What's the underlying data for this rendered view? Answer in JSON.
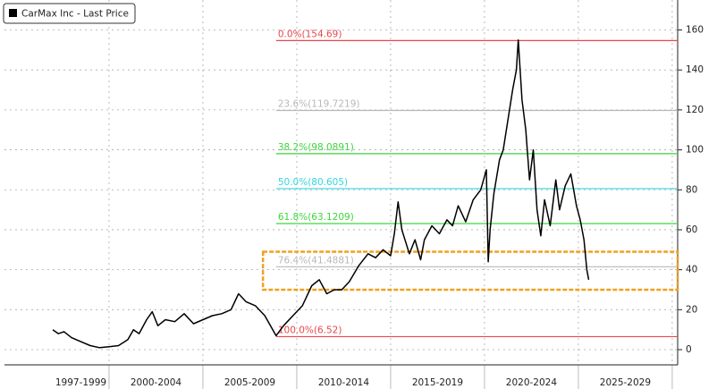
{
  "chart_data": {
    "type": "line",
    "series": [
      {
        "name": "CarMax Inc - Last Price",
        "color": "#000000",
        "x": [
          1997.0,
          1997.3,
          1997.6,
          1998.0,
          1998.5,
          1999.0,
          1999.5,
          2000.0,
          2000.5,
          2001.0,
          2001.3,
          2001.6,
          2002.0,
          2002.3,
          2002.6,
          2003.0,
          2003.5,
          2004.0,
          2004.5,
          2005.0,
          2005.5,
          2006.0,
          2006.5,
          2006.9,
          2007.3,
          2007.8,
          2008.3,
          2008.9,
          2009.3,
          2009.8,
          2010.3,
          2010.8,
          2011.2,
          2011.6,
          2012.0,
          2012.4,
          2012.8,
          2013.3,
          2013.8,
          2014.2,
          2014.6,
          2015.0,
          2015.2,
          2015.4,
          2015.6,
          2016.0,
          2016.3,
          2016.6,
          2016.8,
          2017.2,
          2017.6,
          2018.0,
          2018.3,
          2018.6,
          2019.0,
          2019.4,
          2019.8,
          2020.1,
          2020.2,
          2020.3,
          2020.5,
          2020.8,
          2021.0,
          2021.3,
          2021.5,
          2021.7,
          2021.8,
          2022.0,
          2022.2,
          2022.4,
          2022.6,
          2022.8,
          2023.0,
          2023.2,
          2023.5,
          2023.8,
          2024.0,
          2024.3,
          2024.6,
          2024.9,
          2025.1,
          2025.3,
          2025.45,
          2025.55
        ],
        "values": [
          10,
          8,
          9,
          6,
          4,
          2,
          1,
          1.5,
          2,
          5,
          10,
          8,
          15,
          19,
          12,
          15,
          14,
          18,
          13,
          15,
          17,
          18,
          20,
          28,
          24,
          22,
          17,
          7,
          12,
          17,
          22,
          32,
          35,
          28,
          30,
          30,
          34,
          42,
          48,
          46,
          50,
          47,
          58,
          74,
          60,
          48,
          55,
          45,
          55,
          62,
          58,
          65,
          62,
          72,
          64,
          75,
          80,
          90,
          44,
          60,
          78,
          95,
          100,
          118,
          130,
          140,
          155,
          125,
          110,
          85,
          100,
          70,
          57,
          75,
          62,
          85,
          70,
          82,
          88,
          72,
          65,
          55,
          40,
          35
        ]
      }
    ],
    "fib_levels": [
      {
        "label": "0.0%(154.69)",
        "value": 154.69,
        "color": "#e8474d"
      },
      {
        "label": "23.6%(119.7219)",
        "value": 119.7219,
        "color": "#b8b8b8"
      },
      {
        "label": "38.2%(98.0891)",
        "value": 98.0891,
        "color": "#3dd63d"
      },
      {
        "label": "50.0%(80.605)",
        "value": 80.605,
        "color": "#33d6e0"
      },
      {
        "label": "61.8%(63.1209)",
        "value": 63.1209,
        "color": "#3dd63d"
      },
      {
        "label": "76.4%(41.4881)",
        "value": 41.4881,
        "color": "#b8b8b8"
      },
      {
        "label": "100.0%(6.52)",
        "value": 6.52,
        "color": "#e8474d"
      }
    ],
    "fib_start": 2008.9,
    "highlight": {
      "x0": 2008.2,
      "y0": 30,
      "y1": 49,
      "color": "#f0a020"
    },
    "periods": [
      {
        "label": "1997-1999",
        "start": 1997,
        "end": 2000
      },
      {
        "label": "2000-2004",
        "start": 2000,
        "end": 2005
      },
      {
        "label": "2005-2009",
        "start": 2005,
        "end": 2010
      },
      {
        "label": "2010-2014",
        "start": 2010,
        "end": 2015
      },
      {
        "label": "2015-2019",
        "start": 2015,
        "end": 2020
      },
      {
        "label": "2020-2024",
        "start": 2020,
        "end": 2025
      },
      {
        "label": "2025-2029",
        "start": 2025,
        "end": 2030
      }
    ],
    "xlim": [
      1994.43,
      2030.29
    ],
    "ylim": [
      -7.6,
      175
    ],
    "yticks": [
      0,
      20,
      40,
      60,
      80,
      100,
      120,
      140,
      160
    ],
    "grid": true,
    "legend": "top-left"
  }
}
